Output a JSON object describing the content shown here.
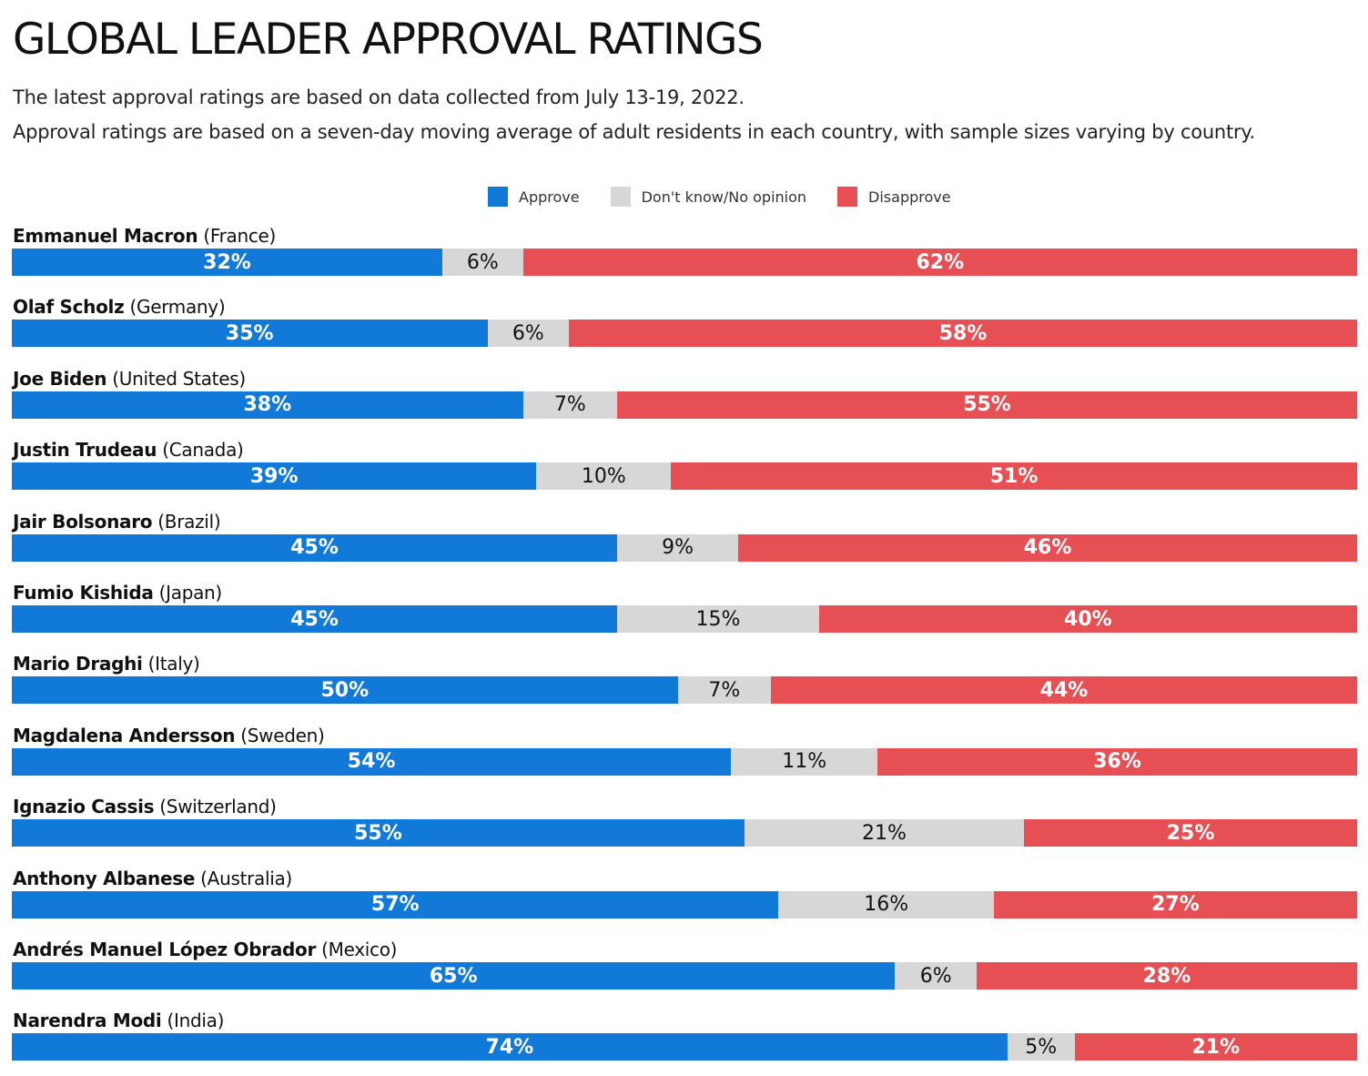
{
  "title": "GLOBAL LEADER APPROVAL RATINGS",
  "subtitle1": "The latest approval ratings are based on data collected from July 13-19, 2022.",
  "subtitle2": "Approval ratings are based on a seven-day moving average of adult residents in each country, with sample sizes varying by country.",
  "legend": [
    {
      "label": "Approve",
      "color": "#1179d8"
    },
    {
      "label": "Don't know/No opinion",
      "color": "#d7d7d7"
    },
    {
      "label": "Disapprove",
      "color": "#e65054"
    }
  ],
  "chart_data": {
    "type": "bar",
    "orientation": "horizontal",
    "stacked": "100%",
    "title": "GLOBAL LEADER APPROVAL RATINGS",
    "legend_position": "top",
    "grid": false,
    "categories": [
      {
        "name": "Emmanuel Macron",
        "country": "(France)"
      },
      {
        "name": "Olaf Scholz",
        "country": "(Germany)"
      },
      {
        "name": "Joe Biden",
        "country": "(United States)"
      },
      {
        "name": "Justin Trudeau",
        "country": "(Canada)"
      },
      {
        "name": "Jair Bolsonaro",
        "country": "(Brazil)"
      },
      {
        "name": "Fumio Kishida",
        "country": "(Japan)"
      },
      {
        "name": "Mario Draghi",
        "country": "(Italy)"
      },
      {
        "name": "Magdalena Andersson",
        "country": "(Sweden)"
      },
      {
        "name": "Ignazio Cassis",
        "country": "(Switzerland)"
      },
      {
        "name": "Anthony Albanese",
        "country": "(Australia)"
      },
      {
        "name": "Andrés Manuel López Obrador",
        "country": "(Mexico)"
      },
      {
        "name": "Narendra Modi",
        "country": "(India)"
      }
    ],
    "series": [
      {
        "name": "Approve",
        "color": "#1179d8",
        "values": [
          32,
          35,
          38,
          39,
          45,
          45,
          50,
          54,
          55,
          57,
          65,
          74
        ]
      },
      {
        "name": "Don't know/No opinion",
        "color": "#d7d7d7",
        "values": [
          6,
          6,
          7,
          10,
          9,
          15,
          7,
          11,
          21,
          16,
          6,
          5
        ]
      },
      {
        "name": "Disapprove",
        "color": "#e65054",
        "values": [
          62,
          58,
          55,
          51,
          46,
          40,
          44,
          36,
          25,
          27,
          28,
          21
        ]
      }
    ],
    "value_suffix": "%"
  }
}
